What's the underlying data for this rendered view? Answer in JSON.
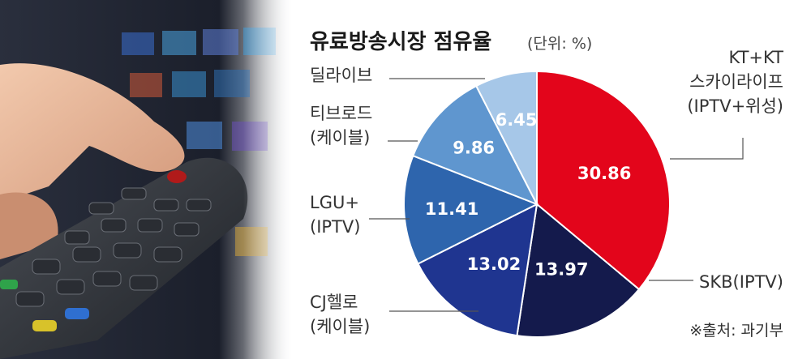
{
  "chart_data": {
    "type": "pie",
    "title": "유료방송시장 점유율",
    "unit_note": "(단위: %)",
    "source": "※출처: 과기부",
    "slices": [
      {
        "name_lines": [
          "KT+KT",
          "스카이라이프",
          "(IPTV+위성)"
        ],
        "value": 30.86,
        "value_label": "30.86",
        "color": "#e3051b"
      },
      {
        "name_lines": [
          "SKB(IPTV)"
        ],
        "value": 13.97,
        "value_label": "13.97",
        "color": "#141a4c"
      },
      {
        "name_lines": [
          "CJ헬로",
          "(케이블)"
        ],
        "value": 13.02,
        "value_label": "13.02",
        "color": "#1f3590"
      },
      {
        "name_lines": [
          "LGU+",
          "(IPTV)"
        ],
        "value": 11.41,
        "value_label": "11.41",
        "color": "#2e65ad"
      },
      {
        "name_lines": [
          "티브로드",
          "(케이블)"
        ],
        "value": 9.86,
        "value_label": "9.86",
        "color": "#5f96cf"
      },
      {
        "name_lines": [
          "딜라이브"
        ],
        "value": 6.45,
        "value_label": "6.45",
        "color": "#a6c7e8"
      }
    ]
  }
}
